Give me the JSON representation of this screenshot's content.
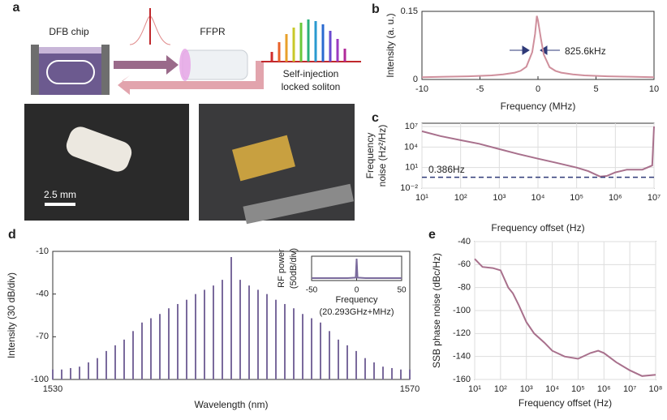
{
  "panel_labels": [
    "a",
    "b",
    "c",
    "d",
    "e"
  ],
  "diagram": {
    "chip": "DFB chip",
    "resonator": "FFPR",
    "soliton": [
      "Self-injection",
      "locked soliton"
    ],
    "scale_bar": "2.5 mm"
  },
  "chart_data": [
    {
      "type": "line",
      "xlabel": "Frequency (MHz)",
      "ylabel": [
        "Intensity (a. u.)"
      ],
      "color": "#cf8f9c",
      "x": [
        -10,
        -8,
        -6,
        -4,
        -3,
        -2,
        -1.5,
        -1,
        -0.5,
        -0.25,
        -0.1,
        0,
        0.25,
        0.5,
        1,
        1.5,
        2,
        3,
        4,
        6,
        8,
        10
      ],
      "values": [
        0.005,
        0.006,
        0.007,
        0.009,
        0.011,
        0.015,
        0.019,
        0.028,
        0.06,
        0.1,
        0.14,
        0.13,
        0.09,
        0.055,
        0.027,
        0.019,
        0.015,
        0.011,
        0.009,
        0.007,
        0.006,
        0.005
      ],
      "xlim": [
        -10,
        10
      ],
      "ylim": [
        0,
        0.15
      ],
      "xticks": [
        -10,
        -5,
        0,
        5,
        10
      ],
      "yticks": [
        0,
        0.15
      ],
      "annotation": "825.6kHz"
    },
    {
      "type": "line",
      "xlabel": "Frequency offset (Hz)",
      "ylabel": [
        "Frequency",
        "noise (Hz²/Hz)"
      ],
      "color": "#a8708c",
      "x": [
        10,
        30,
        100,
        300,
        1000,
        3000,
        10000,
        30000,
        100000,
        200000,
        400000,
        600000,
        1000000,
        2000000,
        5000000,
        9000000,
        10000000
      ],
      "values": [
        2000000,
        400000,
        100000,
        30000,
        5000,
        1000,
        200,
        50,
        10,
        3,
        0.5,
        0.6,
        2,
        5,
        5,
        20,
        10000000
      ],
      "xlim": [
        10,
        10000000
      ],
      "ylim": [
        0.01,
        30000000
      ],
      "log_x": true,
      "log_y": true,
      "grid": true,
      "xticks": [
        {
          "value": 10,
          "label": "10¹"
        },
        {
          "value": 100,
          "label": "10²"
        },
        {
          "value": 1000,
          "label": "10³"
        },
        {
          "value": 10000,
          "label": "10⁴"
        },
        {
          "value": 100000,
          "label": "10⁵"
        },
        {
          "value": 1000000,
          "label": "10⁶"
        },
        {
          "value": 10000000,
          "label": "10⁷"
        }
      ],
      "yticks": [
        {
          "value": 0.01,
          "label": "10⁻²"
        },
        {
          "value": 10,
          "label": "10¹"
        },
        {
          "value": 10000,
          "label": "10⁴"
        },
        {
          "value": 10000000,
          "label": "10⁷"
        }
      ],
      "reference_line": {
        "value": 0.386,
        "label": "0.386Hz",
        "color": "#2f3a78"
      }
    },
    {
      "type": "spectrum",
      "xlabel": "Wavelength (nm)",
      "ylabel": [
        "Intensity (30 dB/div)"
      ],
      "color": "#7a6a9c",
      "x": [
        1530,
        1531,
        1532,
        1533,
        1534,
        1535,
        1536,
        1537,
        1538,
        1539,
        1540,
        1541,
        1542,
        1543,
        1544,
        1545,
        1546,
        1547,
        1548,
        1549,
        1550,
        1551,
        1552,
        1553,
        1554,
        1555,
        1556,
        1557,
        1558,
        1559,
        1560,
        1561,
        1562,
        1563,
        1564,
        1565,
        1566,
        1567,
        1568,
        1569,
        1570
      ],
      "values": [
        -93,
        -93,
        -92,
        -91,
        -88,
        -85,
        -80,
        -76,
        -72,
        -66,
        -60,
        -57,
        -54,
        -50,
        -47,
        -44,
        -40,
        -37,
        -34,
        -30,
        -14,
        -30,
        -34,
        -37,
        -40,
        -44,
        -47,
        -50,
        -54,
        -57,
        -60,
        -66,
        -72,
        -76,
        -80,
        -85,
        -88,
        -91,
        -92,
        -93,
        -93
      ],
      "xlim": [
        1530,
        1570
      ],
      "ylim": [
        -100,
        -10
      ],
      "xticks": [
        1530,
        1570
      ],
      "yticks": [
        -100,
        -70,
        -40,
        -10
      ]
    },
    {
      "type": "line",
      "xlabel": [
        "Frequency",
        "(20.293GHz+MHz)"
      ],
      "ylabel": [
        "RF power",
        "(50dB/div)"
      ],
      "color": "#7a6a9c",
      "x": [
        -50,
        -10,
        -1,
        0,
        1,
        10,
        50
      ],
      "values": [
        -100,
        -100,
        -98,
        -20,
        -98,
        -100,
        -100
      ],
      "xlim": [
        -50,
        50
      ],
      "ylim": [
        -110,
        -10
      ],
      "xticks": [
        -50,
        0,
        50
      ]
    },
    {
      "type": "line",
      "xlabel": "Frequency offset (Hz)",
      "ylabel": [
        "SSB phase noise (dBc/Hz)"
      ],
      "color": "#a8708c",
      "x": [
        10,
        20,
        50,
        100,
        200,
        300,
        500,
        1000,
        2000,
        5000,
        10000,
        30000,
        100000,
        300000,
        600000,
        1000000,
        3000000,
        10000000,
        30000000,
        100000000
      ],
      "values": [
        -55,
        -62,
        -63,
        -65,
        -80,
        -85,
        -95,
        -110,
        -120,
        -128,
        -135,
        -140,
        -142,
        -137,
        -135,
        -137,
        -145,
        -152,
        -157,
        -156
      ],
      "xlim": [
        10,
        100000000
      ],
      "ylim": [
        -160,
        -40
      ],
      "log_x": true,
      "grid": true,
      "xticks": [
        {
          "value": 10,
          "label": "10¹"
        },
        {
          "value": 100,
          "label": "10²"
        },
        {
          "value": 1000,
          "label": "10³"
        },
        {
          "value": 10000,
          "label": "10⁴"
        },
        {
          "value": 100000,
          "label": "10⁵"
        },
        {
          "value": 1000000,
          "label": "10⁶"
        },
        {
          "value": 10000000,
          "label": "10⁷"
        },
        {
          "value": 100000000,
          "label": "10⁸"
        }
      ],
      "yticks": [
        -160,
        -140,
        -120,
        -100,
        -80,
        -60,
        -40
      ]
    }
  ]
}
